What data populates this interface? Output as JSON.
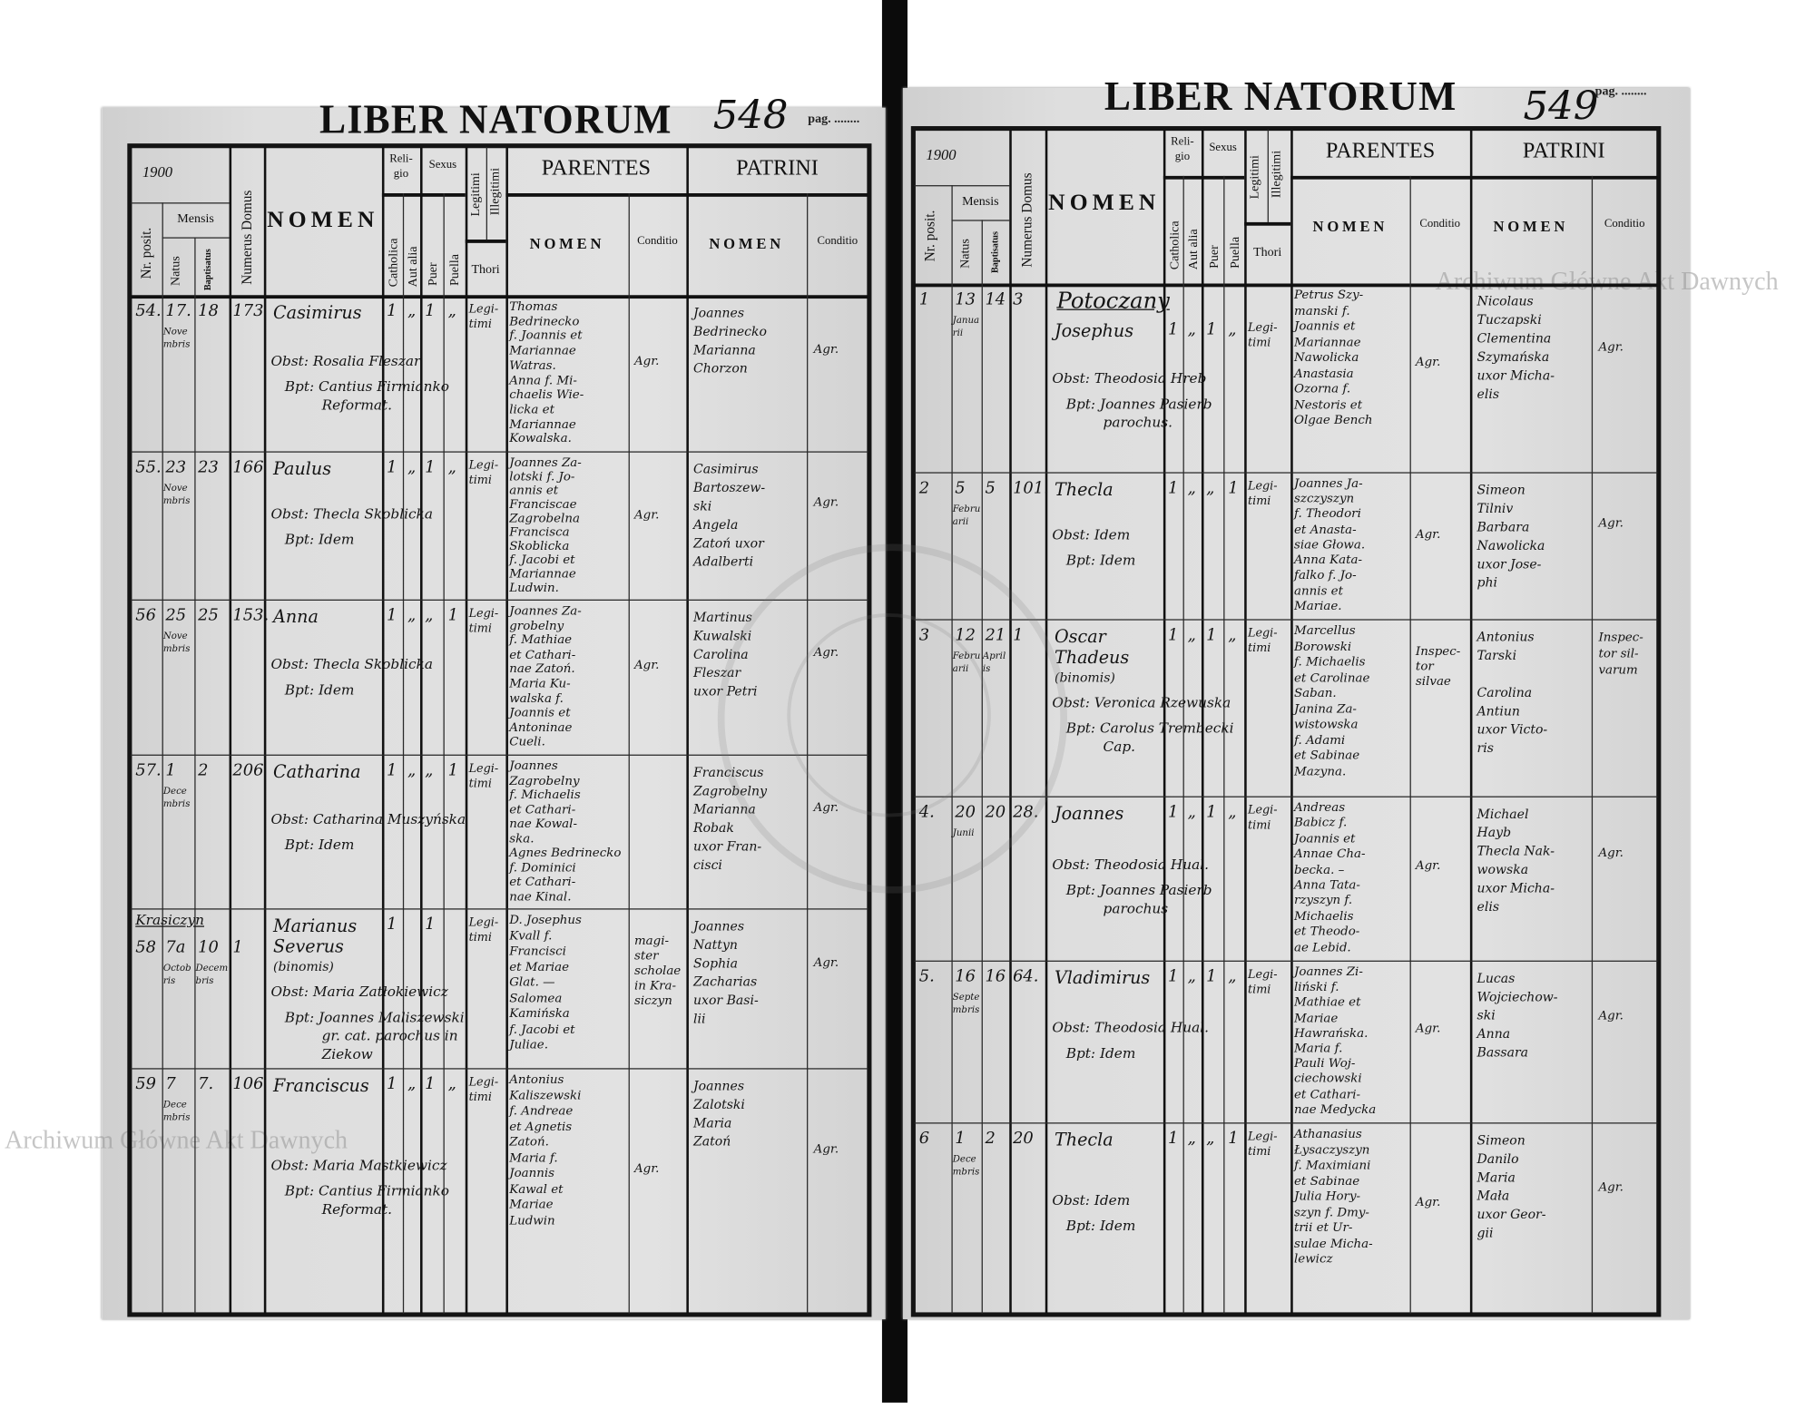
{
  "header": {
    "title": "LIBER NATORUM",
    "pag_label": "pag. ........",
    "year": "1900",
    "nr_posit": "Nr. posit.",
    "mensis": "Mensis",
    "natus": "Natus",
    "baptisatus": "Baptisatus",
    "numerus_domus": "Numerus Domus",
    "nomen": "NOMEN",
    "religio": "Reli-gio",
    "catholica": "Catholica",
    "aut_alia": "Aut alia",
    "sexus": "Sexus",
    "puer": "Puer",
    "puella": "Puella",
    "legitimi": "Legitimi",
    "illegitimi": "Illegitimi",
    "thori": "Thori",
    "parentes": "PARENTES",
    "patrini": "PATRINI",
    "sub_nomen": "NOMEN",
    "conditio": "Conditio"
  },
  "watermark": "Archiwum Główne Akt Dawnych",
  "left_page": {
    "page_number": "548",
    "entries": [
      {
        "nr": "54.",
        "natus": "17.",
        "natus_month": "Novembris",
        "bapt": "18",
        "bapt_month": "",
        "domus": "173",
        "nomen": [
          "Casimirus"
        ],
        "cath": "1",
        "aut": "„",
        "puer": "1",
        "puella": "„",
        "thori": [
          "Legi-",
          "timi"
        ],
        "obst": [
          "Obst: Rosalia Fleszar"
        ],
        "bpt": [
          "Bpt: Cantius Firmianko",
          "Reformat."
        ],
        "parents": [
          "Thomas",
          "Bedrinecko",
          "f. Joannis et",
          "Mariannae",
          "Watras.",
          "Anna f. Mi-",
          "chaelis Wie-",
          "licka et",
          "Mariannae",
          "Kowalska."
        ],
        "parents_cond": [
          "Agr."
        ],
        "patrini": [
          "Joannes",
          "Bedrinecko",
          "Marianna",
          "Chorzon"
        ],
        "patrini_cond": [
          "Agr."
        ]
      },
      {
        "nr": "55.",
        "natus": "23",
        "natus_month": "Novembris",
        "bapt": "23",
        "bapt_month": "",
        "domus": "166",
        "nomen": [
          "Paulus"
        ],
        "cath": "1",
        "aut": "„",
        "puer": "1",
        "puella": "„",
        "thori": [
          "Legi-",
          "timi"
        ],
        "obst": [
          "Obst: Thecla Skoblicka"
        ],
        "bpt": [
          "Bpt: Idem"
        ],
        "parents": [
          "Joannes Za-",
          "lotski f. Jo-",
          "annis et",
          "Franciscae",
          "Zagrobelna",
          "Francisca",
          "Skoblicka",
          "f. Jacobi et",
          "Mariannae",
          "Ludwin."
        ],
        "parents_cond": [
          "Agr."
        ],
        "patrini": [
          "Casimirus",
          "Bartoszew-",
          "ski",
          "Angela",
          "Zatoń uxor",
          "Adalberti"
        ],
        "patrini_cond": [
          "Agr."
        ]
      },
      {
        "nr": "56",
        "natus": "25",
        "natus_month": "Novembris",
        "bapt": "25",
        "bapt_month": "",
        "domus": "153.",
        "nomen": [
          "Anna"
        ],
        "cath": "1",
        "aut": "„",
        "puer": "„",
        "puella": "1",
        "thori": [
          "Legi-",
          "timi"
        ],
        "obst": [
          "Obst: Thecla Skoblicka"
        ],
        "bpt": [
          "Bpt: Idem"
        ],
        "parents": [
          "Joannes Za-",
          "grobelny",
          "f. Mathiae",
          "et Cathari-",
          "nae Zatoń.",
          "Maria Ku-",
          "walska f.",
          "Joannis et",
          "Antoninae",
          "Cueli."
        ],
        "parents_cond": [
          "Agr."
        ],
        "patrini": [
          "Martinus",
          "Kuwalski",
          "Carolina",
          "Fleszar",
          "uxor Petri"
        ],
        "patrini_cond": [
          "Agr."
        ]
      },
      {
        "nr": "57.",
        "natus": "1",
        "natus_month": "Decembris",
        "bapt": "2",
        "bapt_month": "",
        "domus": "206",
        "nomen": [
          "Catharina"
        ],
        "cath": "1",
        "aut": "„",
        "puer": "„",
        "puella": "1",
        "thori": [
          "Legi-",
          "timi"
        ],
        "obst": [
          "Obst: Catharina Muszyńska"
        ],
        "bpt": [
          "Bpt: Idem"
        ],
        "parents": [
          "Joannes",
          "Zagrobelny",
          "f. Michaelis",
          "et Cathari-",
          "nae Kowal-",
          "ska.",
          "Agnes Bedrinecko",
          "f. Dominici",
          "et Cathari-",
          "nae Kinal."
        ],
        "parents_cond": [],
        "patrini": [
          "Franciscus",
          "Zagrobelny",
          "Marianna",
          "Robak",
          "uxor Fran-",
          "cisci"
        ],
        "patrini_cond": [
          "Agr."
        ]
      },
      {
        "heading": "Krasiczyn",
        "nr": "58",
        "natus": "7a",
        "natus_month": "Octobris",
        "bapt": "10",
        "bapt_month": "Decembris",
        "domus": "1",
        "nomen": [
          "Marianus",
          "Severus",
          "(binomis)"
        ],
        "cath": "1",
        "aut": "",
        "puer": "1",
        "puella": "",
        "thori": [
          "Legi-",
          "timi"
        ],
        "obst": [
          "Obst: Maria Zatłokiewicz"
        ],
        "bpt": [
          "Bpt: Joannes Maliszewski",
          "gr. cat. parochus in",
          "Ziekow"
        ],
        "parents": [
          "D. Josephus",
          "Kvall f.",
          "Francisci",
          "et Mariae",
          "Glat. —",
          "Salomea",
          "Kamińska",
          "f. Jacobi et",
          "Juliae."
        ],
        "parents_cond": [
          "magi-",
          "ster",
          "scholae",
          "in Kra-",
          "siczyn"
        ],
        "patrini": [
          "Joannes",
          "Nattyn",
          "Sophia",
          "Zacharias",
          "uxor Basi-",
          "lii"
        ],
        "patrini_cond": [
          "Agr."
        ]
      },
      {
        "nr": "59",
        "natus": "7",
        "natus_month": "Decembris",
        "bapt": "7.",
        "bapt_month": "",
        "domus": "106",
        "nomen": [
          "Franciscus"
        ],
        "cath": "1",
        "aut": "„",
        "puer": "1",
        "puella": "„",
        "thori": [
          "Legi-",
          "timi"
        ],
        "obst": [
          "Obst: Maria Mastkiewicz"
        ],
        "bpt": [
          "Bpt: Cantius Firmianko",
          "Reformat."
        ],
        "parents": [
          "Antonius",
          "Kaliszewski",
          "f. Andreae",
          "et Agnetis",
          "Zatoń.",
          "Maria f.",
          "Joannis",
          "Kawal et",
          "Mariae",
          "Ludwin"
        ],
        "parents_cond": [
          "Agr."
        ],
        "patrini": [
          "Joannes",
          "Zalotski",
          "Maria",
          "Zatoń"
        ],
        "patrini_cond": [
          "Agr."
        ]
      }
    ]
  },
  "right_page": {
    "page_number": "549",
    "entries": [
      {
        "heading": "Potoczany",
        "nr": "1",
        "natus": "13",
        "natus_month": "Januarii",
        "bapt": "14",
        "bapt_month": "",
        "domus": "3",
        "nomen": [
          "Josephus"
        ],
        "cath": "1",
        "aut": "„",
        "puer": "1",
        "puella": "„",
        "thori": [
          "Legi-",
          "timi"
        ],
        "obst": [
          "Obst: Theodosia Hreb"
        ],
        "bpt": [
          "Bpt: Joannes Pasierb",
          "parochus."
        ],
        "parents": [
          "Petrus Szy-",
          "manski f.",
          "Joannis et",
          "Mariannae",
          "Nawolicka",
          "Anastasia",
          "Ozorna f.",
          "Nestoris et",
          "Olgae Bench"
        ],
        "parents_cond": [
          "Agr."
        ],
        "patrini": [
          "Nicolaus",
          "Tuczapski",
          "Clementina",
          "Szymańska",
          "uxor Micha-",
          "elis"
        ],
        "patrini_cond": [
          "Agr."
        ]
      },
      {
        "nr": "2",
        "natus": "5",
        "natus_month": "Februarii",
        "bapt": "5",
        "bapt_month": "",
        "domus": "101.",
        "nomen": [
          "Thecla"
        ],
        "cath": "1",
        "aut": "„",
        "puer": "„",
        "puella": "1",
        "thori": [
          "Legi-",
          "timi"
        ],
        "obst": [
          "Obst: Idem"
        ],
        "bpt": [
          "Bpt: Idem"
        ],
        "parents": [
          "Joannes Ja-",
          "szczyszyn",
          "f. Theodori",
          "et Anasta-",
          "siae Głowa.",
          "Anna Kata-",
          "falko f. Jo-",
          "annis et",
          "Mariae."
        ],
        "parents_cond": [
          "Agr."
        ],
        "patrini": [
          "Simeon",
          "Tilniv",
          "Barbara",
          "Nawolicka",
          "uxor Jose-",
          "phi"
        ],
        "patrini_cond": [
          "Agr."
        ]
      },
      {
        "nr": "3",
        "natus": "12",
        "natus_month": "Februarii",
        "bapt": "21",
        "bapt_month": "Aprilis",
        "domus": "1",
        "nomen": [
          "Oscar",
          "Thadeus",
          "(binomis)"
        ],
        "cath": "1",
        "aut": "„",
        "puer": "1",
        "puella": "„",
        "thori": [
          "Legi-",
          "timi"
        ],
        "obst": [
          "Obst: Veronica Rzewuska"
        ],
        "bpt": [
          "Bpt: Carolus Trembecki",
          "Cap."
        ],
        "parents": [
          "Marcellus",
          "Borowski",
          "f. Michaelis",
          "et Carolinae",
          "Saban.",
          "Janina Za-",
          "wistowska",
          "f. Adami",
          "et Sabinae",
          "Mazyna."
        ],
        "parents_cond": [
          "Inspec-",
          "tor",
          "silvae"
        ],
        "patrini": [
          "Antonius",
          "Tarski",
          "",
          "Carolina",
          "Antiun",
          "uxor Victo-",
          "ris"
        ],
        "patrini_cond": [
          "Inspec-",
          "tor sil-",
          "varum"
        ]
      },
      {
        "nr": "4.",
        "natus": "20",
        "natus_month": "Junii",
        "bapt": "20",
        "bapt_month": "",
        "domus": "28.",
        "nomen": [
          "Joannes"
        ],
        "cath": "1",
        "aut": "„",
        "puer": "1",
        "puella": "„",
        "thori": [
          "Legi-",
          "timi"
        ],
        "obst": [
          "Obst: Theodosia Hual."
        ],
        "bpt": [
          "Bpt: Joannes Pasierb",
          "parochus"
        ],
        "parents": [
          "Andreas",
          "Babicz f.",
          "Joannis et",
          "Annae Cha-",
          "becka. –",
          "Anna Tata-",
          "rzyszyn f.",
          "Michaelis",
          "et Theodo-",
          "ae Lebid."
        ],
        "parents_cond": [
          "Agr."
        ],
        "patrini": [
          "Michael",
          "Hayb",
          "Thecla Nak-",
          "wowska",
          "uxor Micha-",
          "elis"
        ],
        "patrini_cond": [
          "Agr."
        ]
      },
      {
        "nr": "5.",
        "natus": "16",
        "natus_month": "Septembris",
        "bapt": "16",
        "bapt_month": "",
        "domus": "64.",
        "nomen": [
          "Vladimirus"
        ],
        "cath": "1",
        "aut": "„",
        "puer": "1",
        "puella": "„",
        "thori": [
          "Legi-",
          "timi"
        ],
        "obst": [
          "Obst: Theodosia Hual."
        ],
        "bpt": [
          "Bpt: Idem"
        ],
        "parents": [
          "Joannes Zi-",
          "liński f.",
          "Mathiae et",
          "Mariae",
          "Hawrańska.",
          "Maria f.",
          "Pauli Woj-",
          "ciechowski",
          "et Cathari-",
          "nae Medycka"
        ],
        "parents_cond": [
          "Agr."
        ],
        "patrini": [
          "Lucas",
          "Wojciechow-",
          "ski",
          "Anna",
          "Bassara"
        ],
        "patrini_cond": [
          "Agr."
        ]
      },
      {
        "nr": "6",
        "natus": "1",
        "natus_month": "Decembris",
        "bapt": "2",
        "bapt_month": "",
        "domus": "20",
        "nomen": [
          "Thecla"
        ],
        "cath": "1",
        "aut": "„",
        "puer": "„",
        "puella": "1",
        "thori": [
          "Legi-",
          "timi"
        ],
        "obst": [
          "Obst: Idem"
        ],
        "bpt": [
          "Bpt: Idem"
        ],
        "parents": [
          "Athanasius",
          "Łysaczyszyn",
          "f. Maximiani",
          "et Sabinae",
          "Julia Hory-",
          "szyn f. Dmy-",
          "trii et Ur-",
          "sulae Micha-",
          "lewicz"
        ],
        "parents_cond": [
          "Agr."
        ],
        "patrini": [
          "Simeon",
          "Danilo",
          "Maria",
          "Mała",
          "uxor Geor-",
          "gii"
        ],
        "patrini_cond": [
          "Agr."
        ]
      }
    ]
  }
}
